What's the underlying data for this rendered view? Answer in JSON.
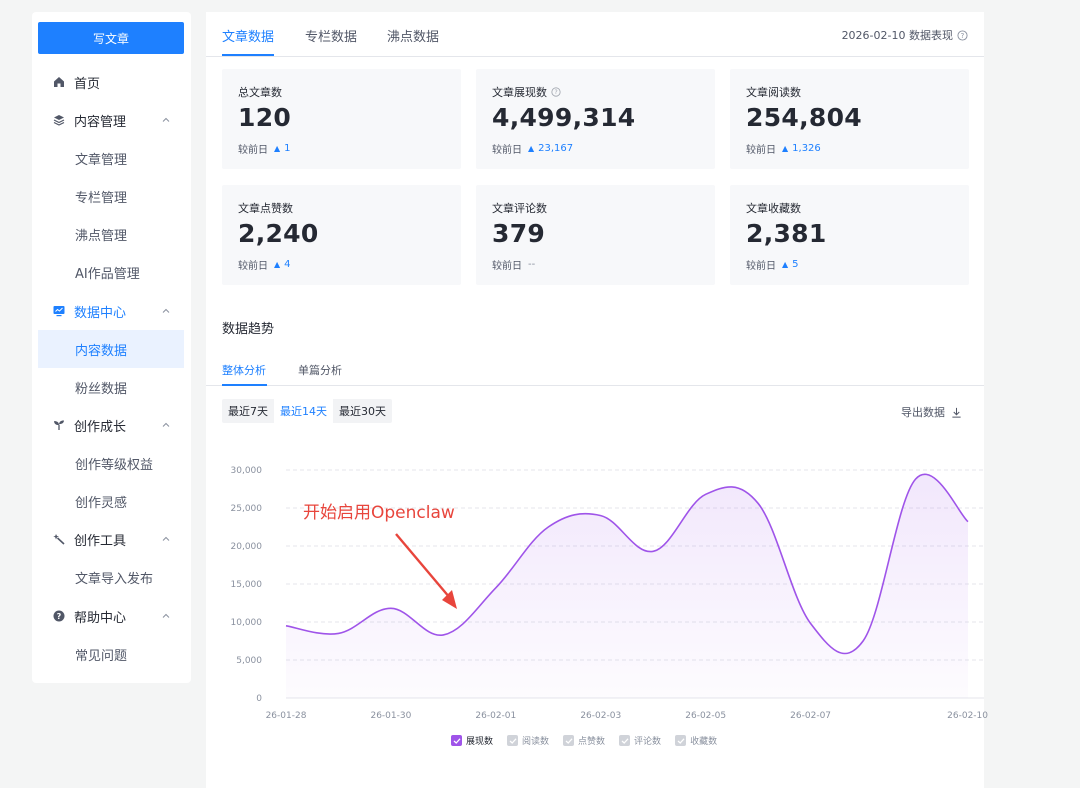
{
  "sidebar": {
    "write_button": "写文章",
    "home": "首页",
    "content_mgmt": "内容管理",
    "content_items": [
      "文章管理",
      "专栏管理",
      "沸点管理",
      "AI作品管理"
    ],
    "data_center": "数据中心",
    "data_items": [
      "内容数据",
      "粉丝数据"
    ],
    "growth": "创作成长",
    "growth_items": [
      "创作等级权益",
      "创作灵感"
    ],
    "tools": "创作工具",
    "tools_items": [
      "文章导入发布"
    ],
    "help": "帮助中心",
    "help_items": [
      "常见问题"
    ]
  },
  "tabs": [
    "文章数据",
    "专栏数据",
    "沸点数据"
  ],
  "date_info": "2026-02-10 数据表现",
  "delta_label": "较前日",
  "cards": [
    {
      "label": "总文章数",
      "value": "120",
      "delta": "1"
    },
    {
      "label": "文章展现数",
      "value": "4,499,314",
      "delta": "23,167"
    },
    {
      "label": "文章阅读数",
      "value": "254,804",
      "delta": "1,326"
    },
    {
      "label": "文章点赞数",
      "value": "2,240",
      "delta": "4"
    },
    {
      "label": "文章评论数",
      "value": "379",
      "delta": "--"
    },
    {
      "label": "文章收藏数",
      "value": "2,381",
      "delta": "5"
    }
  ],
  "section_title": "数据趋势",
  "subtabs": [
    "整体分析",
    "单篇分析"
  ],
  "ranges": [
    "最近7天",
    "最近14天",
    "最近30天"
  ],
  "export_label": "导出数据",
  "annotation": "开始启用Openclaw",
  "colors": {
    "accent": "#1e80ff",
    "series": "#9f54e9"
  },
  "chart_data": {
    "type": "area",
    "x": [
      "26-01-28",
      "26-01-29",
      "26-01-30",
      "26-01-31",
      "26-02-01",
      "26-02-02",
      "26-02-03",
      "26-02-04",
      "26-02-05",
      "26-02-06",
      "26-02-07",
      "26-02-08",
      "26-02-09",
      "26-02-10"
    ],
    "x_tick_labels": [
      "26-01-28",
      "26-01-30",
      "26-02-01",
      "26-02-03",
      "26-02-05",
      "26-02-07",
      "26-02-10"
    ],
    "series": [
      {
        "name": "展现数",
        "values": [
          9500,
          8500,
          11800,
          8300,
          14500,
          22500,
          24000,
          19300,
          26800,
          25600,
          9800,
          7500,
          28800,
          23200
        ]
      }
    ],
    "yticks": [
      0,
      5000,
      10000,
      15000,
      20000,
      25000,
      30000
    ],
    "ylim": [
      0,
      30000
    ],
    "grid": true,
    "legend": [
      "展现数",
      "阅读数",
      "点赞数",
      "评论数",
      "收藏数"
    ],
    "legend_active": [
      true,
      false,
      false,
      false,
      false
    ],
    "legend_placement": "bottom"
  }
}
